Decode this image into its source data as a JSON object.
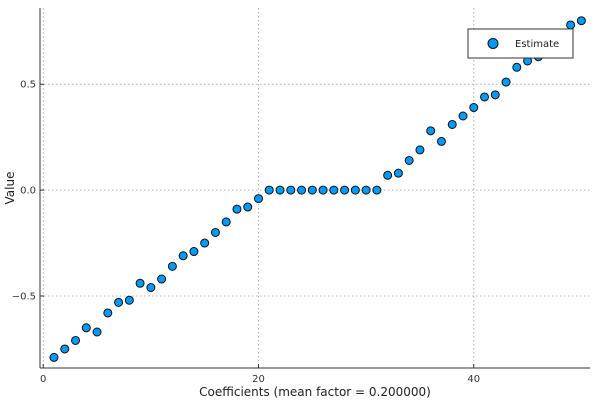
{
  "chart_data": {
    "type": "scatter",
    "title": "",
    "xlabel": "Coefficients (mean factor = 0.200000)",
    "ylabel": "Value",
    "xlim": [
      -0.3,
      50.8
    ],
    "ylim": [
      -0.84,
      0.86
    ],
    "xticks": [
      0,
      20,
      40
    ],
    "xtick_labels": [
      "0",
      "20",
      "40"
    ],
    "yticks": [
      -0.5,
      0.0,
      0.5
    ],
    "ytick_labels": [
      "-0.5",
      "0.0",
      "0.5"
    ],
    "grid": true,
    "legend_position": "top-right",
    "series": [
      {
        "name": "Estimate",
        "color": "#009af9",
        "x": [
          1,
          2,
          3,
          4,
          5,
          6,
          7,
          8,
          9,
          10,
          11,
          12,
          13,
          14,
          15,
          16,
          17,
          18,
          19,
          20,
          21,
          22,
          23,
          24,
          25,
          26,
          27,
          28,
          29,
          30,
          31,
          32,
          33,
          34,
          35,
          36,
          37,
          38,
          39,
          40,
          41,
          42,
          43,
          44,
          45,
          46,
          47,
          48,
          49,
          50
        ],
        "y": [
          -0.79,
          -0.75,
          -0.71,
          -0.65,
          -0.67,
          -0.58,
          -0.53,
          -0.52,
          -0.44,
          -0.46,
          -0.42,
          -0.36,
          -0.31,
          -0.29,
          -0.25,
          -0.2,
          -0.15,
          -0.09,
          -0.08,
          -0.04,
          0.0,
          0.0,
          0.0,
          0.0,
          0.0,
          0.0,
          0.0,
          0.0,
          0.0,
          0.0,
          0.0,
          0.07,
          0.08,
          0.14,
          0.19,
          0.28,
          0.23,
          0.31,
          0.35,
          0.39,
          0.44,
          0.45,
          0.51,
          0.58,
          0.61,
          0.63,
          0.66,
          0.72,
          0.78,
          0.8
        ]
      }
    ]
  }
}
